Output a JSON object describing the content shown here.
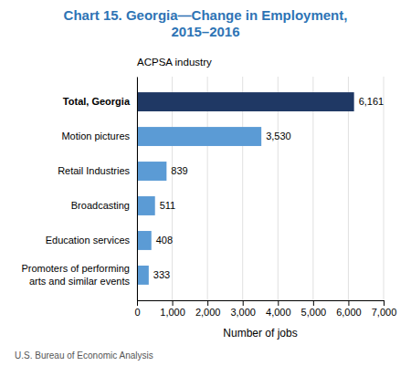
{
  "chart_data": {
    "type": "bar",
    "orientation": "horizontal",
    "title": "Chart 15. Georgia—Change in Employment,\n2015–2016",
    "xlabel": "Number of jobs",
    "ylabel": "ACPSA industry",
    "annotations": [
      "U.S. Bureau of Economic Analysis"
    ],
    "categories": [
      "Promoters of performing\narts and similar events",
      "Education services",
      "Broadcasting",
      "Retail Industries",
      "Motion pictures",
      "Total, Georgia"
    ],
    "values": [
      333,
      408,
      511,
      839,
      3530,
      6161
    ],
    "value_labels": [
      "333",
      "408",
      "511",
      "839",
      "3,530",
      "6,161"
    ],
    "data_labels": true,
    "colors": [
      "#5b9bd5",
      "#5b9bd5",
      "#5b9bd5",
      "#5b9bd5",
      "#5b9bd5",
      "#1f3864"
    ],
    "xlim": [
      0,
      7000
    ],
    "xticks": [
      0,
      {
        "value": 1000,
        "label": "1,000"
      },
      {
        "value": 2000,
        "label": "2,000"
      },
      {
        "value": 3000,
        "label": "3,000"
      },
      {
        "value": 4000,
        "label": "4,000"
      },
      {
        "value": 5000,
        "label": "5,000"
      },
      {
        "value": 6000,
        "label": "6,000"
      },
      {
        "value": 7000,
        "label": "7,000"
      }
    ],
    "grid": true
  }
}
